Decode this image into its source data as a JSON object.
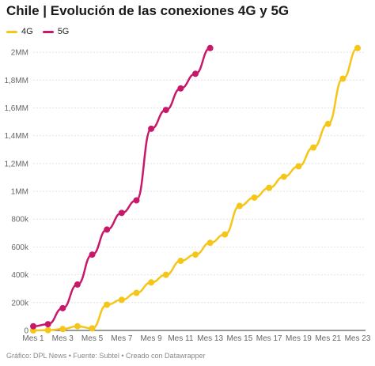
{
  "header": {
    "title": "Chile | Evolución de las conexiones 4G y 5G"
  },
  "footer": {
    "source": "Gráfico: DPL News • Fuente: Subtel • Creado con Datawrapper"
  },
  "chart_data": {
    "type": "line",
    "title": "Chile | Evolución de las conexiones 4G y 5G",
    "xlabel": "",
    "ylabel": "",
    "x": [
      1,
      2,
      3,
      4,
      5,
      6,
      7,
      8,
      9,
      10,
      11,
      12,
      13,
      14,
      15,
      16,
      17,
      18,
      19,
      20,
      21,
      22,
      23
    ],
    "x_tick_values": [
      1,
      3,
      5,
      7,
      9,
      11,
      13,
      15,
      17,
      19,
      21,
      23
    ],
    "x_tick_labels": [
      "Mes 1",
      "Mes 3",
      "Mes 5",
      "Mes 7",
      "Mes 9",
      "Mes 11",
      "Mes 13",
      "Mes 15",
      "Mes 17",
      "Mes 19",
      "Mes 21",
      "Mes 23"
    ],
    "y_ticks": [
      0,
      200000,
      400000,
      600000,
      800000,
      1000000,
      1200000,
      1400000,
      1600000,
      1800000,
      2000000
    ],
    "y_tick_labels": [
      "0",
      "200k",
      "400k",
      "600k",
      "800k",
      "1MM",
      "1,2MM",
      "1,4MM",
      "1,6MM",
      "1,8MM",
      "2MM"
    ],
    "ylim": [
      0,
      2080000
    ],
    "xlim": [
      1,
      23
    ],
    "grid": "horizontal",
    "legend_position": "top-left",
    "series": [
      {
        "name": "4G",
        "color": "#f5c518",
        "x": [
          1,
          2,
          3,
          4,
          5,
          6,
          7,
          8,
          9,
          10,
          11,
          12,
          13,
          14,
          15,
          16,
          17,
          18,
          19,
          20,
          21,
          22,
          23
        ],
        "values": [
          0,
          2000,
          10000,
          30000,
          15000,
          185000,
          220000,
          270000,
          345000,
          400000,
          500000,
          545000,
          630000,
          690000,
          895000,
          955000,
          1025000,
          1105000,
          1180000,
          1315000,
          1485000,
          1810000,
          2030000
        ]
      },
      {
        "name": "5G",
        "color": "#c8186a",
        "x": [
          1,
          2,
          3,
          4,
          5,
          6,
          7,
          8,
          9,
          10,
          11,
          12,
          13
        ],
        "values": [
          30000,
          45000,
          160000,
          330000,
          545000,
          725000,
          845000,
          935000,
          1450000,
          1585000,
          1740000,
          1845000,
          2030000
        ]
      }
    ]
  }
}
